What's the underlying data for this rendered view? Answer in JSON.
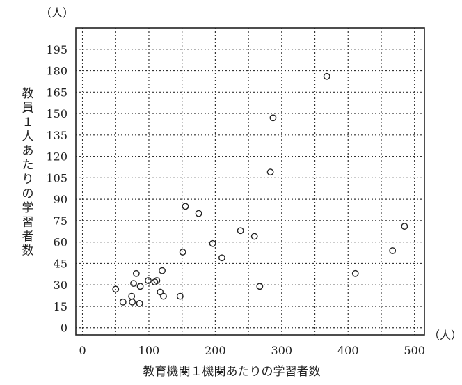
{
  "chart_data": {
    "type": "scatter",
    "title": "",
    "xlabel": "教育機関１機関あたりの学習者数",
    "ylabel": "教員１人あたりの学習者数",
    "x_unit": "（人）",
    "y_unit": "（人）",
    "xlim": [
      -10,
      515
    ],
    "ylim": [
      -5,
      210
    ],
    "x_ticks": [
      0,
      100,
      200,
      300,
      400,
      500
    ],
    "y_ticks": [
      0,
      15,
      30,
      45,
      60,
      75,
      90,
      105,
      120,
      135,
      150,
      165,
      180,
      195
    ],
    "x_tick_labels": [
      "0",
      "100",
      "200",
      "300",
      "400",
      "500"
    ],
    "y_tick_labels": [
      "0",
      "15",
      "30",
      "45",
      "60",
      "75",
      "90",
      "105",
      "120",
      "135",
      "150",
      "165",
      "180",
      "195"
    ],
    "grid": true,
    "points": [
      {
        "x": 368,
        "y": 176
      },
      {
        "x": 287,
        "y": 147
      },
      {
        "x": 283,
        "y": 109
      },
      {
        "x": 155,
        "y": 85
      },
      {
        "x": 175,
        "y": 80
      },
      {
        "x": 238,
        "y": 68
      },
      {
        "x": 259,
        "y": 64
      },
      {
        "x": 196,
        "y": 59
      },
      {
        "x": 151,
        "y": 53
      },
      {
        "x": 210,
        "y": 49
      },
      {
        "x": 485,
        "y": 71
      },
      {
        "x": 467,
        "y": 54
      },
      {
        "x": 411,
        "y": 38
      },
      {
        "x": 267,
        "y": 29
      },
      {
        "x": 120,
        "y": 40
      },
      {
        "x": 81,
        "y": 38
      },
      {
        "x": 99,
        "y": 33
      },
      {
        "x": 112,
        "y": 33
      },
      {
        "x": 109,
        "y": 32
      },
      {
        "x": 77,
        "y": 31
      },
      {
        "x": 87,
        "y": 29
      },
      {
        "x": 50,
        "y": 27
      },
      {
        "x": 117,
        "y": 25
      },
      {
        "x": 74,
        "y": 22
      },
      {
        "x": 122,
        "y": 22
      },
      {
        "x": 147,
        "y": 22
      },
      {
        "x": 61,
        "y": 18
      },
      {
        "x": 75,
        "y": 18
      },
      {
        "x": 86,
        "y": 17
      }
    ]
  }
}
